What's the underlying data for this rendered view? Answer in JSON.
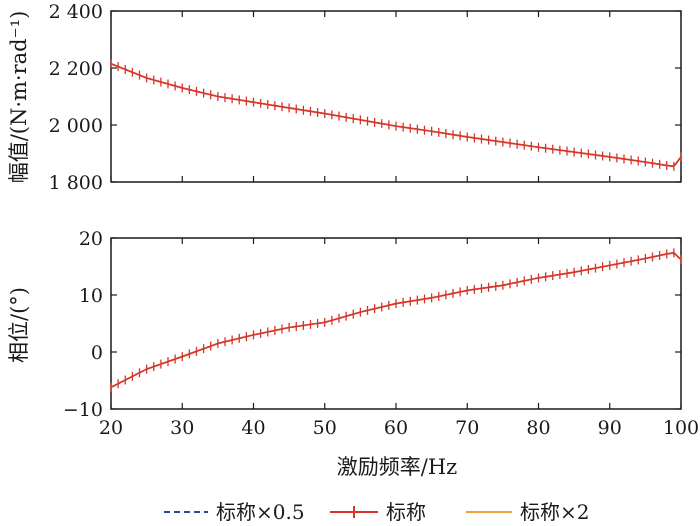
{
  "chart_data": [
    {
      "type": "line",
      "panel": "top",
      "ylabel": "幅值/(N·m·rad⁻¹)",
      "xlabel": "",
      "xlim": [
        20,
        100
      ],
      "ylim": [
        1800,
        2400
      ],
      "ytick_labels": [
        "1 800",
        "2 000",
        "2 200",
        "2 400"
      ],
      "ytick_values": [
        1800,
        2000,
        2200,
        2400
      ],
      "x": [
        20,
        25,
        30,
        35,
        40,
        45,
        50,
        55,
        60,
        65,
        70,
        75,
        80,
        85,
        90,
        95,
        98,
        99,
        100
      ],
      "series": [
        {
          "name": "标称×0.5",
          "values": [
            2215,
            2165,
            2130,
            2100,
            2080,
            2060,
            2040,
            2018,
            1996,
            1978,
            1958,
            1940,
            1922,
            1905,
            1888,
            1870,
            1858,
            1855,
            1888
          ]
        },
        {
          "name": "标称",
          "values": [
            2215,
            2165,
            2130,
            2100,
            2080,
            2060,
            2040,
            2018,
            1996,
            1978,
            1958,
            1940,
            1922,
            1905,
            1888,
            1870,
            1858,
            1855,
            1888
          ]
        },
        {
          "name": "标称×2",
          "values": [
            2215,
            2165,
            2130,
            2100,
            2080,
            2060,
            2040,
            2018,
            1996,
            1978,
            1958,
            1940,
            1922,
            1905,
            1888,
            1870,
            1858,
            1855,
            1888
          ]
        }
      ]
    },
    {
      "type": "line",
      "panel": "bottom",
      "ylabel": "相位/(°)",
      "xlabel": "激励频率/Hz",
      "xlim": [
        20,
        100
      ],
      "ylim": [
        -10,
        20
      ],
      "ytick_labels": [
        "−10",
        "0",
        "10",
        "20"
      ],
      "ytick_values": [
        -10,
        0,
        10,
        20
      ],
      "xtick_labels": [
        "20",
        "30",
        "40",
        "50",
        "60",
        "70",
        "80",
        "90",
        "100"
      ],
      "xtick_values": [
        20,
        30,
        40,
        50,
        60,
        70,
        80,
        90,
        100
      ],
      "x": [
        20,
        25,
        30,
        35,
        40,
        45,
        50,
        55,
        60,
        65,
        70,
        75,
        80,
        85,
        90,
        95,
        98,
        99,
        100
      ],
      "series": [
        {
          "name": "标称×0.5",
          "values": [
            -6.2,
            -3.0,
            -0.8,
            1.5,
            3.0,
            4.3,
            5.2,
            7.0,
            8.5,
            9.5,
            10.8,
            11.7,
            13.0,
            14.0,
            15.2,
            16.4,
            17.2,
            17.4,
            16.2
          ]
        },
        {
          "name": "标称",
          "values": [
            -6.2,
            -3.0,
            -0.8,
            1.5,
            3.0,
            4.3,
            5.2,
            7.0,
            8.5,
            9.5,
            10.8,
            11.7,
            13.0,
            14.0,
            15.2,
            16.4,
            17.2,
            17.4,
            16.2
          ]
        },
        {
          "name": "标称×2",
          "values": [
            -6.2,
            -3.0,
            -0.8,
            1.5,
            3.0,
            4.3,
            5.2,
            7.0,
            8.5,
            9.5,
            10.8,
            11.7,
            13.0,
            14.0,
            15.2,
            16.4,
            17.2,
            17.4,
            16.2
          ]
        }
      ]
    }
  ],
  "legend": [
    {
      "label": "标称×0.5",
      "color": "#2b4c9b",
      "style": "dashed"
    },
    {
      "label": "标称",
      "color": "#d9342b",
      "style": "solid-plus"
    },
    {
      "label": "标称×2",
      "color": "#f0a040",
      "style": "solid"
    }
  ],
  "colors": {
    "half": "#2b4c9b",
    "nominal": "#d9342b",
    "double": "#f0a040",
    "axis": "#1a1a1a"
  }
}
